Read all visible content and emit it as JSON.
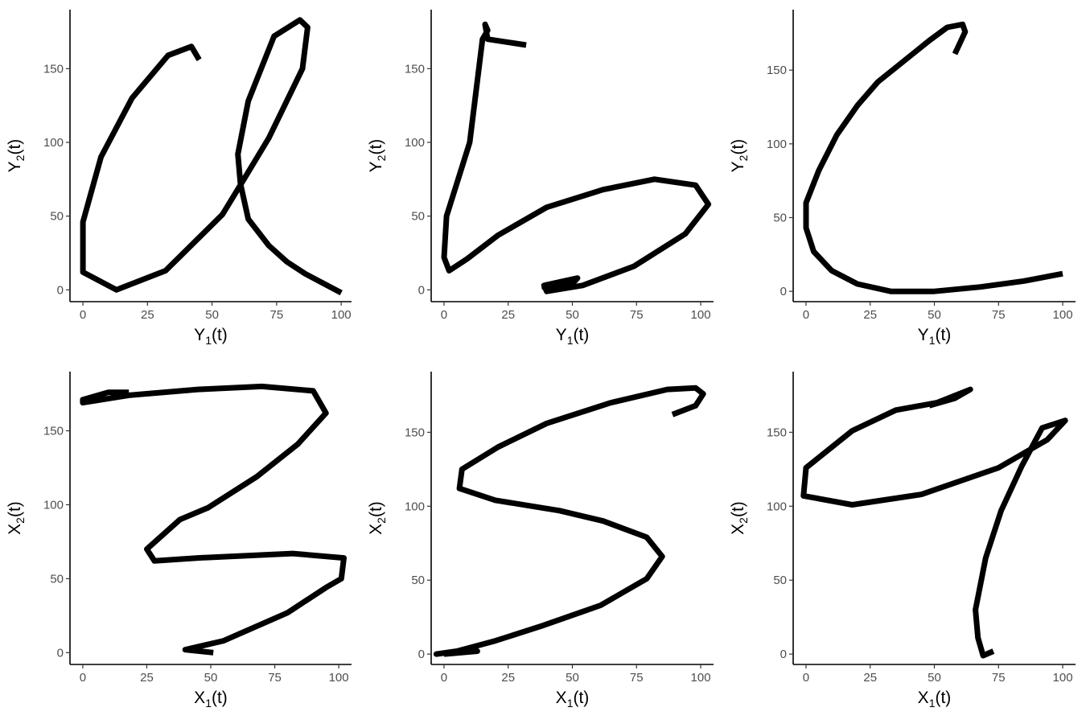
{
  "chart_data": [
    {
      "type": "line",
      "xlabel": {
        "base": "Y",
        "sub": "1",
        "suffix": "(t)"
      },
      "ylabel": {
        "base": "Y",
        "sub": "2",
        "suffix": "(t)"
      },
      "xlim": [
        -5,
        104
      ],
      "ylim": [
        -8,
        190
      ],
      "xticks": [
        0,
        25,
        50,
        75,
        100
      ],
      "yticks": [
        0,
        50,
        100,
        150
      ],
      "grid": false,
      "x": [
        45,
        42,
        33,
        19,
        7,
        0,
        0,
        13,
        32,
        54,
        62,
        72,
        85,
        87,
        84,
        74,
        64,
        60,
        61,
        64,
        72,
        79,
        86,
        100
      ],
      "y": [
        156,
        165,
        159,
        130,
        90,
        46,
        12,
        0,
        13,
        51,
        74,
        103,
        150,
        178,
        183,
        172,
        128,
        92,
        72,
        48,
        30,
        19,
        11,
        -2
      ]
    },
    {
      "type": "line",
      "xlabel": {
        "base": "Y",
        "sub": "1",
        "suffix": "(t)"
      },
      "ylabel": {
        "base": "Y",
        "sub": "2",
        "suffix": "(t)"
      },
      "xlim": [
        -5,
        105
      ],
      "ylim": [
        -8,
        190
      ],
      "xticks": [
        0,
        25,
        50,
        75,
        100
      ],
      "yticks": [
        0,
        50,
        100,
        150
      ],
      "grid": false,
      "x": [
        32,
        17,
        16,
        17,
        15,
        10,
        1,
        0,
        2,
        9,
        21,
        40,
        62,
        82,
        98,
        103,
        94,
        74,
        54,
        40,
        39,
        52,
        51,
        38
      ],
      "y": [
        166,
        170,
        180,
        176,
        170,
        100,
        50,
        22,
        13,
        21,
        37,
        56,
        68,
        75,
        71,
        58,
        38,
        16,
        3,
        -1,
        3,
        8,
        6,
        2
      ]
    },
    {
      "type": "line",
      "xlabel": {
        "base": "Y",
        "sub": "1",
        "suffix": "(t)"
      },
      "ylabel": {
        "base": "Y",
        "sub": "2",
        "suffix": "(t)"
      },
      "xlim": [
        -5,
        105
      ],
      "ylim": [
        -7,
        191
      ],
      "xticks": [
        0,
        25,
        50,
        75,
        100
      ],
      "yticks": [
        0,
        50,
        100,
        150
      ],
      "grid": false,
      "x": [
        58,
        62,
        61,
        55,
        48,
        38,
        28,
        20,
        12,
        5,
        0,
        0,
        3,
        10,
        20,
        33,
        50,
        68,
        85,
        100
      ],
      "y": [
        161,
        176,
        181,
        179,
        170,
        156,
        142,
        126,
        106,
        82,
        60,
        43,
        27,
        14,
        5,
        0,
        0,
        3,
        7,
        12
      ]
    },
    {
      "type": "line",
      "xlabel": {
        "base": "X",
        "sub": "1",
        "suffix": "(t)"
      },
      "ylabel": {
        "base": "X",
        "sub": "2",
        "suffix": "(t)"
      },
      "xlim": [
        -5,
        105
      ],
      "ylim": [
        -8,
        190
      ],
      "xticks": [
        0,
        25,
        50,
        75,
        100
      ],
      "yticks": [
        0,
        50,
        100,
        150
      ],
      "grid": false,
      "x": [
        18,
        10,
        0,
        0,
        18,
        45,
        70,
        90,
        95,
        84,
        68,
        49,
        38,
        25,
        28,
        45,
        82,
        102,
        101,
        95,
        80,
        55,
        40,
        51
      ],
      "y": [
        176,
        176,
        171,
        169,
        174,
        178,
        180,
        177,
        162,
        141,
        119,
        98,
        90,
        70,
        62,
        64,
        67,
        64,
        50,
        44,
        27,
        8,
        2,
        0
      ]
    },
    {
      "type": "line",
      "xlabel": {
        "base": "X",
        "sub": "1",
        "suffix": "(t)"
      },
      "ylabel": {
        "base": "X",
        "sub": "2",
        "suffix": "(t)"
      },
      "xlim": [
        -5,
        105
      ],
      "ylim": [
        -7,
        191
      ],
      "xticks": [
        0,
        25,
        50,
        75,
        100
      ],
      "yticks": [
        0,
        50,
        100,
        150
      ],
      "grid": false,
      "x": [
        89,
        98,
        101,
        98,
        87,
        65,
        40,
        21,
        7,
        6,
        20,
        45,
        62,
        79,
        85,
        79,
        61,
        38,
        20,
        5,
        -3,
        5,
        13,
        0
      ],
      "y": [
        162,
        168,
        176,
        180,
        179,
        170,
        156,
        140,
        125,
        112,
        104,
        97,
        90,
        79,
        66,
        51,
        33,
        19,
        9,
        2,
        0,
        2,
        2,
        0
      ]
    },
    {
      "type": "line",
      "xlabel": {
        "base": "X",
        "sub": "1",
        "suffix": "(t)"
      },
      "ylabel": {
        "base": "X",
        "sub": "2",
        "suffix": "(t)"
      },
      "xlim": [
        -5,
        105
      ],
      "ylim": [
        -7,
        191
      ],
      "xticks": [
        0,
        25,
        50,
        75,
        100
      ],
      "yticks": [
        0,
        50,
        100,
        150
      ],
      "grid": false,
      "x": [
        48,
        58,
        64,
        51,
        35,
        18,
        0,
        -1,
        18,
        45,
        75,
        94,
        101,
        92,
        84,
        76,
        70,
        66,
        67,
        69,
        73
      ],
      "y": [
        168,
        173,
        179,
        170,
        165,
        151,
        126,
        107,
        101,
        108,
        126,
        145,
        158,
        153,
        127,
        97,
        65,
        30,
        11,
        -1,
        2
      ]
    }
  ]
}
